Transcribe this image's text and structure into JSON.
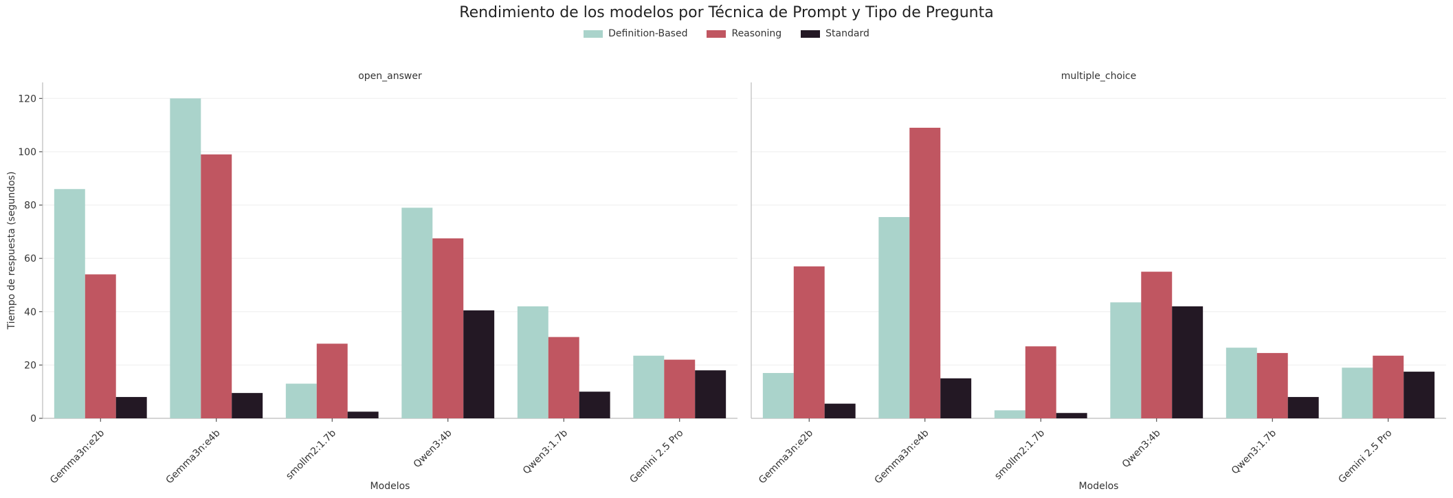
{
  "title": "Rendimiento de los modelos por Técnica de Prompt y Tipo de Pregunta",
  "legend": [
    {
      "label": "Definition-Based",
      "color": "#aad3cb"
    },
    {
      "label": "Reasoning",
      "color": "#c05661"
    },
    {
      "label": "Standard",
      "color": "#231824"
    }
  ],
  "chart_data": [
    {
      "type": "bar",
      "title": "open_answer",
      "xlabel": "Modelos",
      "ylabel": "Tiempo de respuesta (segundos)",
      "ylim": [
        0,
        126
      ],
      "yticks": [
        0,
        20,
        40,
        60,
        80,
        100,
        120
      ],
      "grid": true,
      "categories": [
        "Gemma3n:e2b",
        "Gemma3n:e4b",
        "smollm2:1.7b",
        "Qwen3:4b",
        "Qwen3:1.7b",
        "Gemini 2.5 Pro"
      ],
      "series": [
        {
          "name": "Definition-Based",
          "values": [
            86,
            120,
            13,
            79,
            42,
            23.5
          ]
        },
        {
          "name": "Reasoning",
          "values": [
            54,
            99,
            28,
            67.5,
            30.5,
            22
          ]
        },
        {
          "name": "Standard",
          "values": [
            8,
            9.5,
            2.5,
            40.5,
            10,
            18
          ]
        }
      ]
    },
    {
      "type": "bar",
      "title": "multiple_choice",
      "xlabel": "Modelos",
      "ylabel": "",
      "ylim": [
        0,
        126
      ],
      "yticks": [
        0,
        20,
        40,
        60,
        80,
        100,
        120
      ],
      "grid": true,
      "categories": [
        "Gemma3n:e2b",
        "Gemma3n:e4b",
        "smollm2:1.7b",
        "Qwen3:4b",
        "Qwen3:1.7b",
        "Gemini 2.5 Pro"
      ],
      "series": [
        {
          "name": "Definition-Based",
          "values": [
            17,
            75.5,
            3,
            43.5,
            26.5,
            19
          ]
        },
        {
          "name": "Reasoning",
          "values": [
            57,
            109,
            27,
            55,
            24.5,
            23.5
          ]
        },
        {
          "name": "Standard",
          "values": [
            5.5,
            15,
            2,
            42,
            8,
            17.5
          ]
        }
      ]
    }
  ]
}
